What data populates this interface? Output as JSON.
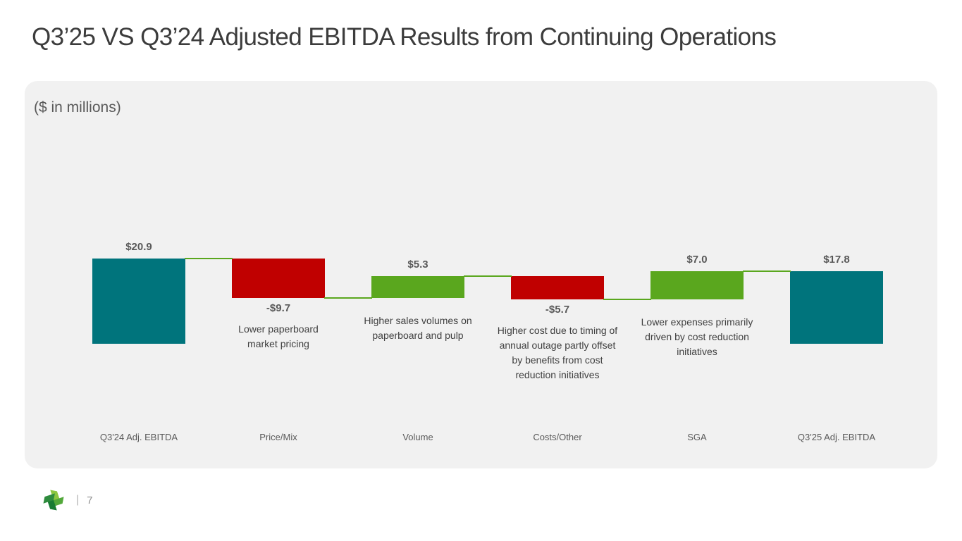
{
  "title": "Q3’25 VS Q3’24 Adjusted EBITDA Results from Continuing  Operations",
  "footer": {
    "logo_name": "company-pinwheel-logo",
    "separator": "|",
    "page_number": "7"
  },
  "chart_data": {
    "type": "bar",
    "subtype": "waterfall",
    "title": "Q3’25 VS Q3’24 Adjusted EBITDA Results from Continuing Operations",
    "units": "($ in millions)",
    "axes_hidden": true,
    "grid": false,
    "legend": "none",
    "ylim": [
      0,
      26
    ],
    "categories": [
      "Q3'24 Adj. EBITDA",
      "Price/Mix",
      "Volume",
      "Costs/Other",
      "SGA",
      "Q3'25 Adj. EBITDA"
    ],
    "steps": [
      {
        "category": "Q3'24 Adj. EBITDA",
        "value": 20.9,
        "label": "$20.9",
        "kind": "total",
        "annotation": ""
      },
      {
        "category": "Price/Mix",
        "value": -9.7,
        "label": "-$9.7",
        "kind": "decrease",
        "annotation": "Lower paperboard market  pricing"
      },
      {
        "category": "Volume",
        "value": 5.3,
        "label": "$5.3",
        "kind": "increase",
        "annotation": "Higher sales volumes on paperboard and pulp"
      },
      {
        "category": "Costs/Other",
        "value": -5.7,
        "label": "-$5.7",
        "kind": "decrease",
        "annotation": "Higher cost due to timing of annual outage partly offset by benefits from cost reduction initiatives"
      },
      {
        "category": "SGA",
        "value": 7.0,
        "label": "$7.0",
        "kind": "increase",
        "annotation": "Lower expenses primarily driven by cost reduction initiatives"
      },
      {
        "category": "Q3'25 Adj. EBITDA",
        "value": 17.8,
        "label": "$17.8",
        "kind": "total",
        "annotation": ""
      }
    ],
    "colors": {
      "total": "#00747C",
      "increase": "#5AA71E",
      "decrease": "#C00000",
      "connector": "#5AA71E"
    }
  }
}
